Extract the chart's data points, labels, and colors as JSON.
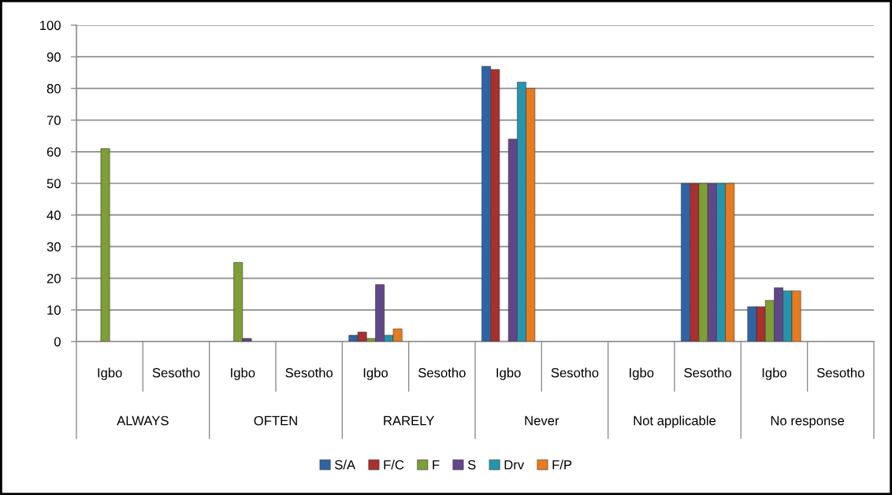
{
  "chart_data": {
    "type": "bar",
    "categories": [
      "Igbo",
      "Sesotho",
      "Igbo",
      "Sesotho",
      "Igbo",
      "Sesotho",
      "Igbo",
      "Sesotho",
      "Igbo",
      "Sesotho",
      "Igbo",
      "Sesotho"
    ],
    "annotations": [
      "ALWAYS",
      "OFTEN",
      "RARELY",
      "Never",
      "Not applicable",
      "No response"
    ],
    "series": [
      {
        "name": "S/A",
        "color": "#2e64a5",
        "values": [
          null,
          null,
          null,
          null,
          2,
          null,
          87,
          null,
          null,
          50,
          11,
          null
        ]
      },
      {
        "name": "F/C",
        "color": "#a8302e",
        "values": [
          null,
          null,
          null,
          null,
          3,
          null,
          86,
          null,
          null,
          50,
          11,
          null
        ]
      },
      {
        "name": "F",
        "color": "#7d9f35",
        "values": [
          61,
          null,
          25,
          null,
          1,
          null,
          null,
          null,
          null,
          50,
          13,
          null
        ]
      },
      {
        "name": "S",
        "color": "#61468a",
        "values": [
          null,
          null,
          1,
          null,
          18,
          null,
          64,
          null,
          null,
          50,
          17,
          null
        ]
      },
      {
        "name": "Drv",
        "color": "#2794ad",
        "values": [
          null,
          null,
          null,
          null,
          2,
          null,
          82,
          null,
          null,
          50,
          16,
          null
        ]
      },
      {
        "name": "F/P",
        "color": "#e67c1f",
        "values": [
          null,
          null,
          null,
          null,
          4,
          null,
          80,
          null,
          null,
          50,
          16,
          null
        ]
      }
    ],
    "ylim": [
      0,
      100
    ],
    "yticks": [
      0,
      10,
      20,
      30,
      40,
      50,
      60,
      70,
      80,
      90,
      100
    ],
    "grid": "y",
    "legend": "bottom"
  }
}
